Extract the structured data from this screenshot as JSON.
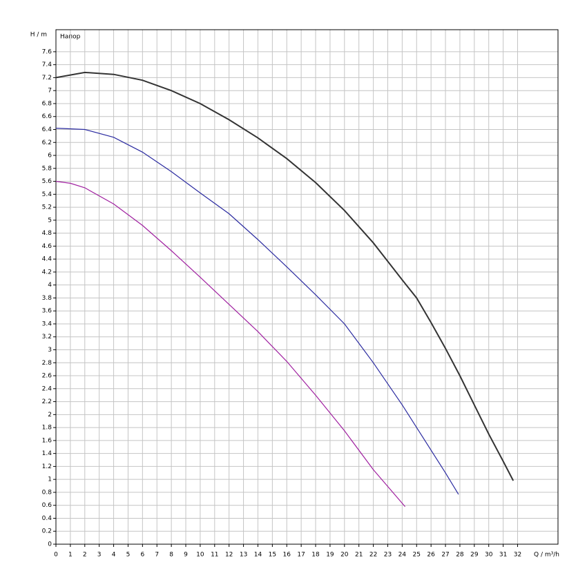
{
  "chart_data": {
    "type": "line",
    "y_label": "H / m",
    "x_label": "Q / m³/h",
    "annotation": "Напор",
    "xlim": [
      0,
      34.8
    ],
    "ylim": [
      0,
      7.94
    ],
    "xticks": [
      0,
      1,
      2,
      3,
      4,
      5,
      6,
      7,
      8,
      9,
      10,
      11,
      12,
      13,
      14,
      15,
      16,
      17,
      18,
      19,
      20,
      21,
      22,
      23,
      24,
      25,
      26,
      27,
      28,
      29,
      30,
      31,
      32
    ],
    "yticks": [
      0,
      0.2,
      0.4,
      0.6,
      0.8,
      1,
      1.2,
      1.4,
      1.6,
      1.8,
      2,
      2.2,
      2.4,
      2.6,
      2.8,
      3,
      3.2,
      3.4,
      3.6,
      3.8,
      4,
      4.2,
      4.4,
      4.6,
      4.8,
      5,
      5.2,
      5.4,
      5.6,
      5.8,
      6,
      6.2,
      6.4,
      6.6,
      6.8,
      7,
      7.2,
      7.4,
      7.6
    ],
    "grid": true,
    "series": [
      {
        "color": "#333333",
        "x": [
          0,
          2,
          4,
          6,
          8,
          10,
          12,
          14,
          16,
          18,
          20,
          22,
          24,
          25,
          26,
          27,
          28,
          29,
          30,
          31,
          31.7
        ],
        "values": [
          7.2,
          7.28,
          7.25,
          7.16,
          7.0,
          6.8,
          6.55,
          6.27,
          5.95,
          5.58,
          5.15,
          4.65,
          4.08,
          3.8,
          3.42,
          3.02,
          2.6,
          2.15,
          1.7,
          1.28,
          0.98
        ]
      },
      {
        "color": "#2a2aa0",
        "x": [
          0,
          2,
          4,
          6,
          8,
          10,
          12,
          14,
          16,
          18,
          20,
          22,
          24,
          26,
          27,
          27.9
        ],
        "values": [
          6.42,
          6.4,
          6.28,
          6.05,
          5.75,
          5.42,
          5.1,
          4.7,
          4.28,
          3.85,
          3.4,
          2.8,
          2.15,
          1.45,
          1.1,
          0.77
        ]
      },
      {
        "color": "#a020a0",
        "x": [
          0,
          1,
          2,
          4,
          6,
          8,
          10,
          12,
          14,
          16,
          18,
          20,
          22,
          24.2
        ],
        "values": [
          5.6,
          5.57,
          5.5,
          5.25,
          4.92,
          4.53,
          4.12,
          3.7,
          3.28,
          2.82,
          2.3,
          1.75,
          1.15,
          0.58
        ]
      }
    ]
  }
}
